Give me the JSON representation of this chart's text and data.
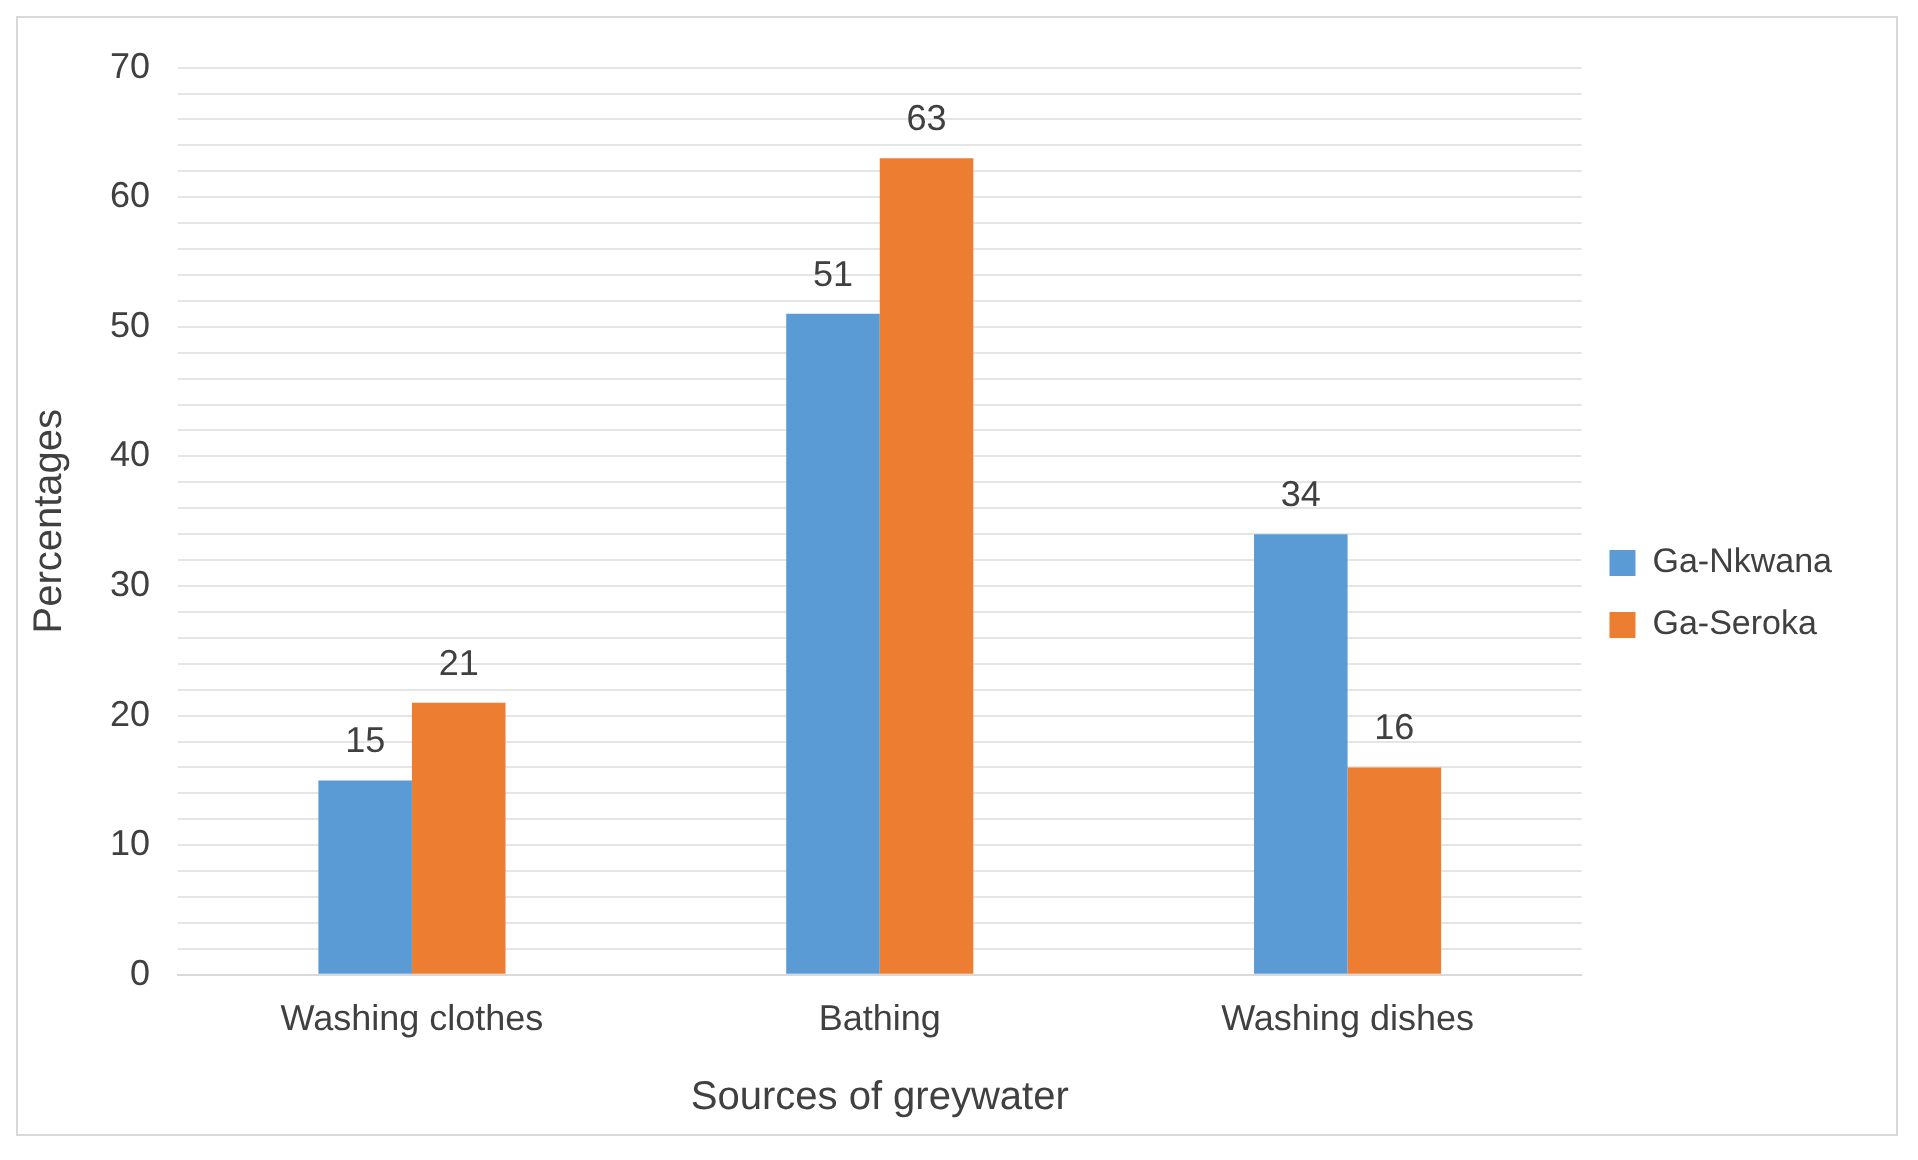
{
  "chart_data": {
    "type": "bar",
    "xlabel": "Sources of greywater",
    "ylabel": "Percentages",
    "categories": [
      "Washing clothes",
      "Bathing",
      "Washing dishes"
    ],
    "series": [
      {
        "name": "Ga-Nkwana",
        "color": "#5b9bd5",
        "values": [
          15,
          51,
          34
        ]
      },
      {
        "name": "Ga-Seroka",
        "color": "#ed7d31",
        "values": [
          21,
          63,
          16
        ]
      }
    ],
    "ylim": [
      0,
      70
    ],
    "yticks": [
      0,
      {
        "value": 2,
        "label": null
      },
      {
        "value": 4,
        "label": null
      },
      {
        "value": 6,
        "label": null
      },
      {
        "value": 8,
        "label": null
      },
      10,
      {
        "value": 12,
        "label": null
      },
      {
        "value": 14,
        "label": null
      },
      {
        "value": 16,
        "label": null
      },
      {
        "value": 18,
        "label": null
      },
      20,
      {
        "value": 22,
        "label": null
      },
      {
        "value": 24,
        "label": null
      },
      {
        "value": 26,
        "label": null
      },
      {
        "value": 28,
        "label": null
      },
      30,
      {
        "value": 32,
        "label": null
      },
      {
        "value": 34,
        "label": null
      },
      {
        "value": 36,
        "label": null
      },
      {
        "value": 38,
        "label": null
      },
      40,
      {
        "value": 42,
        "label": null
      },
      {
        "value": 44,
        "label": null
      },
      {
        "value": 46,
        "label": null
      },
      {
        "value": 48,
        "label": null
      },
      50,
      {
        "value": 52,
        "label": null
      },
      {
        "value": 54,
        "label": null
      },
      {
        "value": 56,
        "label": null
      },
      {
        "value": 58,
        "label": null
      },
      60,
      {
        "value": 62,
        "label": null
      },
      {
        "value": 64,
        "label": null
      },
      {
        "value": 66,
        "label": null
      },
      {
        "value": 68,
        "label": null
      },
      70
    ],
    "grid": "y",
    "legend": "right",
    "data_labels": true
  }
}
